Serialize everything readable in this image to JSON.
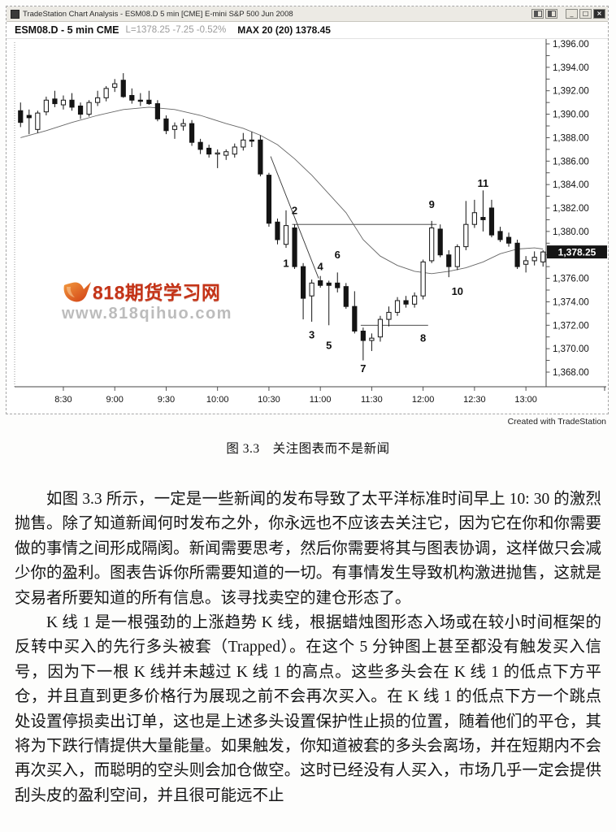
{
  "window": {
    "title": "TradeStation Chart Analysis - ESM08.D 5 min [CME] E-mini S&P 500 Jun 2008",
    "buttons": {
      "minimize": "_",
      "restore": "□",
      "close": "×"
    },
    "header": {
      "symbol": "ESM08.D - 5 min CME",
      "quote": "L=1378.25 -7.25 -0.52%",
      "indicator": "MAX 20 (20)  1378.45"
    }
  },
  "watermark": {
    "title": "818期货学习网",
    "url": "www.818qihuo.com",
    "brand_red": "#c43317",
    "logo_orange": "#e8601c"
  },
  "credit": "Created with TradeStation",
  "caption": "图 3.3　关注图表而不是新闻",
  "paragraphs": [
    "如图 3.3 所示，一定是一些新闻的发布导致了太平洋标准时间早上 10: 30 的激烈抛售。除了知道新闻何时发布之外，你永远也不应该去关注它，因为它在你和你需要做的事情之间形成隔阂。新闻需要思考，然后你需要将其与图表协调，这样做只会减少你的盈利。图表告诉你所需要知道的一切。有事情发生导致机构激进抛售，这就是交易者所要知道的所有信息。该寻找卖空的建仓形态了。",
    "K 线 1 是一根强劲的上涨趋势 K 线，根据蜡烛图形态入场或在较小时间框架的反转中买入的先行多头被套（Trapped）。在这个 5 分钟图上甚至都没有触发买入信号，因为下一根 K 线并未越过 K 线 1 的高点。这些多头会在 K 线 1 的低点下方平仓，并且直到更多价格行为展现之前不会再次买入。在 K 线 1 的低点下方一个跳点处设置停损卖出订单，这也是上述多头设置保护性止损的位置，随着他们的平仓，其将为下跌行情提供大量能量。如果触发，你知道被套的多头会离场，并在短期内不会再次买入，而聪明的空头则会加仓做空。这时已经没有人买入，市场几乎一定会提供刮头皮的盈利空间，并且很可能远不止"
  ],
  "chart_data": {
    "type": "candlestick",
    "title": "ESM08.D - 5 min CME",
    "interval_min": 5,
    "start_time": "8:05",
    "ylim": [
      1368,
      1396
    ],
    "grid": false,
    "style": {
      "up": "#ffffff",
      "down": "#141414",
      "wick": "#141414",
      "ma": "#666666",
      "axis": "#444444",
      "annotation": "#111111"
    },
    "y_ticks": [
      {
        "p": 1396,
        "label": "1,396.00"
      },
      {
        "p": 1394,
        "label": "1,394.00"
      },
      {
        "p": 1392,
        "label": "1,392.00"
      },
      {
        "p": 1390,
        "label": "1,390.00"
      },
      {
        "p": 1388,
        "label": "1,388.00"
      },
      {
        "p": 1386,
        "label": "1,386.00"
      },
      {
        "p": 1384,
        "label": "1,384.00"
      },
      {
        "p": 1382,
        "label": "1,382.00"
      },
      {
        "p": 1380,
        "label": "1,380.00"
      },
      {
        "p": 1376,
        "label": "1,376.00"
      },
      {
        "p": 1374,
        "label": "1,374.00"
      },
      {
        "p": 1372,
        "label": "1,372.00"
      },
      {
        "p": 1370,
        "label": "1,370.00"
      },
      {
        "p": 1368,
        "label": "1,368.00"
      }
    ],
    "y_minor_step": 1,
    "x_ticks": [
      {
        "label": "8:30",
        "bar": 5
      },
      {
        "label": "9:00",
        "bar": 11
      },
      {
        "label": "9:30",
        "bar": 17
      },
      {
        "label": "10:00",
        "bar": 23
      },
      {
        "label": "10:30",
        "bar": 29
      },
      {
        "label": "11:00",
        "bar": 35
      },
      {
        "label": "11:30",
        "bar": 41
      },
      {
        "label": "12:00",
        "bar": 47
      },
      {
        "label": "12:30",
        "bar": 53
      },
      {
        "label": "13:00",
        "bar": 59
      }
    ],
    "candles": [
      [
        1390.3,
        1391.0,
        1388.9,
        1389.3
      ],
      [
        1389.9,
        1390.4,
        1388.3,
        1389.7
      ],
      [
        1388.7,
        1390.3,
        1388.4,
        1390.1
      ],
      [
        1390.2,
        1391.5,
        1389.9,
        1391.2
      ],
      [
        1391.3,
        1392.0,
        1390.6,
        1390.9
      ],
      [
        1390.8,
        1391.6,
        1390.4,
        1391.2
      ],
      [
        1391.2,
        1391.8,
        1390.3,
        1390.6
      ],
      [
        1390.7,
        1391.0,
        1389.6,
        1390.0
      ],
      [
        1390.0,
        1391.2,
        1389.8,
        1391.0
      ],
      [
        1391.0,
        1392.0,
        1390.7,
        1391.4
      ],
      [
        1391.4,
        1392.4,
        1391.1,
        1392.2
      ],
      [
        1392.3,
        1393.0,
        1391.9,
        1392.6
      ],
      [
        1392.9,
        1393.5,
        1391.4,
        1391.5
      ],
      [
        1391.6,
        1392.2,
        1390.9,
        1391.2
      ],
      [
        1391.2,
        1391.8,
        1390.7,
        1391.1
      ],
      [
        1391.2,
        1392.0,
        1390.8,
        1390.9
      ],
      [
        1390.9,
        1391.2,
        1389.4,
        1389.6
      ],
      [
        1389.6,
        1389.9,
        1388.3,
        1388.6
      ],
      [
        1388.7,
        1389.3,
        1387.9,
        1389.0
      ],
      [
        1389.0,
        1389.6,
        1388.6,
        1389.2
      ],
      [
        1389.2,
        1389.5,
        1387.3,
        1387.6
      ],
      [
        1387.6,
        1387.9,
        1386.6,
        1387.0
      ],
      [
        1387.1,
        1387.4,
        1386.3,
        1386.6
      ],
      [
        1386.7,
        1387.0,
        1385.4,
        1386.7
      ],
      [
        1386.5,
        1387.0,
        1386.1,
        1386.8
      ],
      [
        1386.6,
        1387.5,
        1386.3,
        1387.2
      ],
      [
        1387.2,
        1388.4,
        1386.9,
        1387.8
      ],
      [
        1387.8,
        1388.5,
        1387.2,
        1387.7
      ],
      [
        1387.8,
        1388.2,
        1384.7,
        1384.9
      ],
      [
        1384.8,
        1385.0,
        1380.4,
        1380.7
      ],
      [
        1380.8,
        1381.1,
        1378.9,
        1379.3
      ],
      [
        1378.9,
        1381.8,
        1378.6,
        1380.5
      ],
      [
        1380.3,
        1380.6,
        1376.8,
        1377.0
      ],
      [
        1377.0,
        1377.3,
        1372.5,
        1374.3
      ],
      [
        1374.5,
        1375.9,
        1372.3,
        1375.6
      ],
      [
        1375.8,
        1376.2,
        1375.2,
        1375.4
      ],
      [
        1375.6,
        1375.8,
        1372.0,
        1375.4
      ],
      [
        1375.6,
        1376.5,
        1374.8,
        1375.2
      ],
      [
        1375.3,
        1375.6,
        1373.4,
        1373.6
      ],
      [
        1373.6,
        1374.9,
        1371.3,
        1371.5
      ],
      [
        1371.5,
        1371.8,
        1369.0,
        1370.7
      ],
      [
        1370.7,
        1371.3,
        1369.8,
        1370.9
      ],
      [
        1371.0,
        1372.8,
        1370.6,
        1372.5
      ],
      [
        1372.5,
        1373.6,
        1371.9,
        1373.1
      ],
      [
        1373.1,
        1374.4,
        1372.8,
        1374.1
      ],
      [
        1374.1,
        1374.5,
        1373.5,
        1373.8
      ],
      [
        1373.8,
        1374.8,
        1373.5,
        1374.5
      ],
      [
        1374.5,
        1377.6,
        1374.2,
        1377.4
      ],
      [
        1377.5,
        1380.9,
        1377.3,
        1380.3
      ],
      [
        1380.2,
        1380.6,
        1377.8,
        1378.0
      ],
      [
        1378.0,
        1378.4,
        1376.1,
        1377.0
      ],
      [
        1377.0,
        1378.9,
        1376.7,
        1378.7
      ],
      [
        1378.7,
        1382.6,
        1378.4,
        1380.6
      ],
      [
        1380.6,
        1382.7,
        1380.3,
        1381.6
      ],
      [
        1381.2,
        1383.5,
        1380.0,
        1381.0
      ],
      [
        1382.0,
        1382.7,
        1379.5,
        1379.7
      ],
      [
        1380.0,
        1380.4,
        1379.1,
        1379.3
      ],
      [
        1379.5,
        1379.9,
        1378.7,
        1379.0
      ],
      [
        1379.0,
        1379.3,
        1376.8,
        1377.0
      ],
      [
        1377.2,
        1377.9,
        1376.5,
        1377.5
      ],
      [
        1377.5,
        1378.3,
        1377.1,
        1377.8
      ],
      [
        1377.4,
        1378.4,
        1377.0,
        1378.25
      ]
    ],
    "ma_label": "MAX 20 (20)",
    "ma": [
      [
        0,
        1388.0
      ],
      [
        3,
        1388.6
      ],
      [
        6,
        1389.3
      ],
      [
        9,
        1389.9
      ],
      [
        12,
        1390.4
      ],
      [
        15,
        1390.6
      ],
      [
        18,
        1390.4
      ],
      [
        21,
        1389.9
      ],
      [
        24,
        1389.2
      ],
      [
        26,
        1388.8
      ],
      [
        28,
        1388.2
      ],
      [
        30,
        1387.4
      ],
      [
        32,
        1386.2
      ],
      [
        34,
        1384.8
      ],
      [
        36,
        1383.2
      ],
      [
        38,
        1381.6
      ],
      [
        40,
        1379.3
      ],
      [
        42,
        1377.9
      ],
      [
        44,
        1377.1
      ],
      [
        46,
        1376.6
      ],
      [
        48,
        1376.4
      ],
      [
        50,
        1376.6
      ],
      [
        52,
        1376.9
      ],
      [
        54,
        1377.4
      ],
      [
        56,
        1378.1
      ],
      [
        58,
        1378.5
      ],
      [
        60,
        1378.6
      ],
      [
        61,
        1378.5
      ]
    ],
    "annotations": [
      {
        "n": "1",
        "bar": 31,
        "price": 1377.3
      },
      {
        "n": "2",
        "bar": 32,
        "price": 1381.8
      },
      {
        "n": "3",
        "bar": 34,
        "price": 1371.2
      },
      {
        "n": "4",
        "bar": 35,
        "price": 1377.0
      },
      {
        "n": "5",
        "bar": 36,
        "price": 1370.3
      },
      {
        "n": "6",
        "bar": 37,
        "price": 1378.0
      },
      {
        "n": "7",
        "bar": 40,
        "price": 1368.3
      },
      {
        "n": "8",
        "bar": 47,
        "price": 1370.9
      },
      {
        "n": "9",
        "bar": 48,
        "price": 1382.3
      },
      {
        "n": "10",
        "bar": 51,
        "price": 1374.9
      },
      {
        "n": "11",
        "bar": 54,
        "price": 1384.1
      }
    ],
    "h_lines": [
      {
        "price": 1380.6,
        "from": 32,
        "to": 48.3
      },
      {
        "price": 1372.0,
        "from": 40,
        "to": 47.3
      }
    ],
    "trendline": {
      "b1": 29.2,
      "p1": 1386.4,
      "b2": 34.8,
      "p2": 1376.0
    },
    "last_price_badge": {
      "label": "1,378.25",
      "price": 1378.25
    }
  }
}
